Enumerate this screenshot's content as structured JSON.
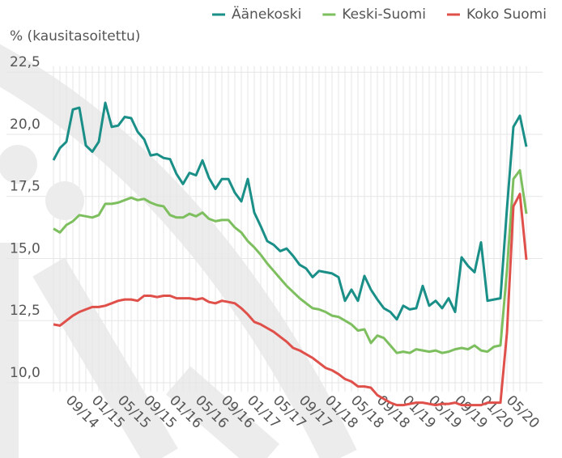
{
  "chart_data": {
    "type": "line",
    "y_label": "% (kausitasoitettu)",
    "categories": [
      null,
      null,
      null,
      null,
      "09/14",
      null,
      null,
      null,
      "01/15",
      null,
      null,
      null,
      "05/15",
      null,
      null,
      null,
      "09/15",
      null,
      null,
      null,
      "01/16",
      null,
      null,
      null,
      "05/16",
      null,
      null,
      null,
      "09/16",
      null,
      null,
      null,
      "01/17",
      null,
      null,
      null,
      "05/17",
      null,
      null,
      null,
      "09/17",
      null,
      null,
      null,
      "01/18",
      null,
      null,
      null,
      "05/18",
      null,
      null,
      null,
      "09/18",
      null,
      null,
      null,
      "01/19",
      null,
      null,
      null,
      "05/19",
      null,
      null,
      null,
      "09/19",
      null,
      null,
      null,
      "01/20",
      null,
      null,
      null,
      "05/20",
      null
    ],
    "series": [
      {
        "name": "Äänekoski",
        "color": "#1a8f88",
        "values": [
          18.96,
          19.45,
          19.7,
          21.0,
          21.07,
          19.55,
          19.3,
          19.7,
          21.27,
          20.3,
          20.35,
          20.7,
          20.65,
          20.1,
          19.8,
          19.15,
          19.2,
          19.05,
          19.0,
          18.4,
          18.0,
          18.45,
          18.35,
          18.95,
          18.25,
          17.8,
          18.2,
          18.2,
          17.65,
          17.3,
          18.2,
          16.85,
          16.3,
          15.7,
          15.55,
          15.3,
          15.4,
          15.1,
          14.75,
          14.6,
          14.25,
          14.5,
          14.45,
          14.4,
          14.25,
          13.3,
          13.75,
          13.3,
          14.3,
          13.75,
          13.35,
          13.0,
          12.85,
          12.55,
          13.1,
          12.95,
          13.0,
          13.9,
          13.1,
          13.3,
          13.0,
          13.4,
          12.85,
          15.05,
          14.7,
          14.45,
          15.65,
          13.3,
          13.35,
          13.4,
          17.0,
          20.3,
          20.75,
          19.5
        ]
      },
      {
        "name": "Keski-Suomi",
        "color": "#7dbf5e",
        "values": [
          16.2,
          16.05,
          16.35,
          16.5,
          16.75,
          16.7,
          16.65,
          16.75,
          17.2,
          17.2,
          17.25,
          17.35,
          17.45,
          17.35,
          17.4,
          17.25,
          17.15,
          17.1,
          16.75,
          16.65,
          16.65,
          16.8,
          16.7,
          16.85,
          16.6,
          16.5,
          16.55,
          16.55,
          16.25,
          16.05,
          15.7,
          15.45,
          15.15,
          14.8,
          14.5,
          14.2,
          13.9,
          13.65,
          13.4,
          13.2,
          13.0,
          12.95,
          12.85,
          12.7,
          12.65,
          12.5,
          12.35,
          12.1,
          12.15,
          11.6,
          11.9,
          11.8,
          11.5,
          11.2,
          11.25,
          11.2,
          11.35,
          11.3,
          11.25,
          11.3,
          11.2,
          11.25,
          11.35,
          11.4,
          11.35,
          11.5,
          11.3,
          11.25,
          11.45,
          11.5,
          14.5,
          18.2,
          18.55,
          16.8
        ]
      },
      {
        "name": "Koko Suomi",
        "color": "#e0504a",
        "values": [
          12.35,
          12.3,
          12.5,
          12.7,
          12.85,
          12.95,
          13.05,
          13.05,
          13.1,
          13.2,
          13.3,
          13.35,
          13.35,
          13.3,
          13.5,
          13.5,
          13.45,
          13.5,
          13.5,
          13.4,
          13.4,
          13.4,
          13.35,
          13.4,
          13.25,
          13.2,
          13.3,
          13.25,
          13.2,
          13.0,
          12.75,
          12.45,
          12.35,
          12.2,
          12.05,
          11.85,
          11.65,
          11.4,
          11.3,
          11.15,
          11.0,
          10.8,
          10.6,
          10.5,
          10.35,
          10.15,
          10.05,
          9.85,
          9.85,
          9.8,
          9.5,
          9.35,
          9.2,
          9.1,
          9.1,
          9.15,
          9.2,
          9.2,
          9.15,
          9.1,
          9.15,
          9.15,
          9.2,
          9.1,
          9.1,
          9.1,
          9.1,
          9.2,
          9.2,
          9.2,
          12.0,
          17.1,
          17.6,
          14.95
        ]
      }
    ],
    "ylim": [
      9.0,
      23.4
    ],
    "yticks": [
      {
        "value": 10,
        "label": "10,0"
      },
      {
        "value": 12.5,
        "label": "12,5"
      },
      {
        "value": 15,
        "label": "15,0"
      },
      {
        "value": 17.5,
        "label": "17,5"
      },
      {
        "value": 20,
        "label": "20,0"
      },
      {
        "value": 22.5,
        "label": "22,5"
      }
    ],
    "grid": true
  }
}
